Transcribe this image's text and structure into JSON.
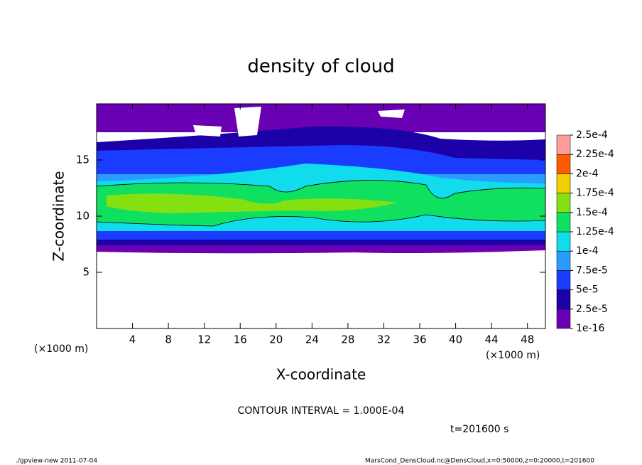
{
  "chart_data": {
    "type": "contour",
    "title": "density of cloud",
    "x_label": "X-coordinate",
    "y_label": "Z-coordinate",
    "x_unit": "(×1000 m)",
    "y_unit": "(×1000 m)",
    "xlim": [
      0,
      50
    ],
    "xticks": [
      4,
      8,
      12,
      16,
      20,
      24,
      28,
      32,
      36,
      40,
      44,
      48
    ],
    "ylim": [
      0,
      20
    ],
    "yticks": [
      5,
      10,
      15
    ],
    "levels": [
      {
        "value": 1e-16,
        "label": "1e-16"
      },
      {
        "value": 2.5e-05,
        "label": "2.5e-5"
      },
      {
        "value": 5e-05,
        "label": "5e-5"
      },
      {
        "value": 7.5e-05,
        "label": "7.5e-5"
      },
      {
        "value": 0.0001,
        "label": "1e-4"
      },
      {
        "value": 0.000125,
        "label": "1.25e-4"
      },
      {
        "value": 0.00015,
        "label": "1.5e-4"
      },
      {
        "value": 0.000175,
        "label": "1.75e-4"
      },
      {
        "value": 0.0002,
        "label": "2e-4"
      },
      {
        "value": 0.000225,
        "label": "2.25e-4"
      },
      {
        "value": 0.00025,
        "label": "2.5e-4"
      }
    ],
    "colors": [
      "#6a00b4",
      "#1c00a8",
      "#1a3cff",
      "#2a9cff",
      "#10dcec",
      "#10e060",
      "#84e010",
      "#f0d000",
      "#ff5a00",
      "#ff9c9c"
    ],
    "contour_note": "CONTOUR INTERVAL = 1.000E-04",
    "time": "t=201600 s",
    "footer_left": "./gpview-new  2011-07-04",
    "footer_right": "MarsCond_DensCloud.nc@DensCloud,x=0:50000,z=0:20000,t=201600"
  }
}
